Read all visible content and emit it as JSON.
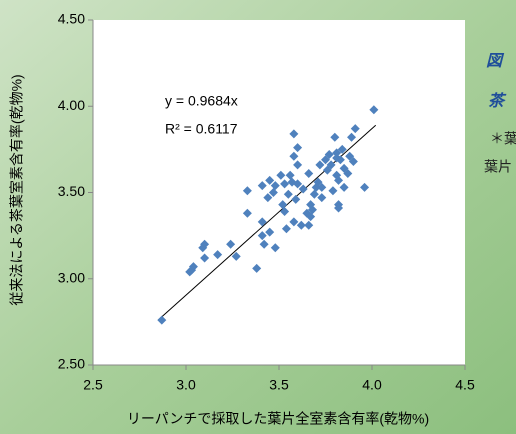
{
  "chart_data": {
    "type": "scatter",
    "x_label": "リーパンチで採取した葉片全室素含有率(乾物%)",
    "y_label": "従来法による茶葉室素含有率(乾物%)",
    "annotations": [
      "y = 0.9684x",
      "R² = 0.6117"
    ],
    "side_texts": [
      "図",
      "茶",
      "＊葉",
      "葉片"
    ],
    "color": "#4f81bd",
    "grid": false,
    "xlim": [
      2.5,
      4.5
    ],
    "ylim": [
      2.5,
      4.5
    ],
    "xticks": [
      2.5,
      {
        "value": 3,
        "label": "3.0"
      },
      3.5,
      {
        "value": 4,
        "label": "4.0"
      },
      4.5
    ],
    "yticks": [
      {
        "value": 2.5,
        "label": "2.50"
      },
      {
        "value": 3,
        "label": "3.00"
      },
      {
        "value": 3.5,
        "label": "3.50"
      },
      {
        "value": 4,
        "label": "4.00"
      },
      {
        "value": 4.5,
        "label": "4.50"
      }
    ],
    "trendline": {
      "x": [
        2.85,
        4.02
      ],
      "y": [
        2.76,
        3.89
      ]
    },
    "x": [
      2.87,
      3.02,
      3.04,
      3.03,
      3.1,
      3.1,
      3.09,
      3.17,
      3.24,
      3.27,
      3.33,
      3.33,
      3.38,
      3.41,
      3.41,
      3.42,
      3.41,
      3.44,
      3.45,
      3.45,
      3.47,
      3.48,
      3.48,
      3.52,
      3.51,
      3.53,
      3.53,
      3.54,
      3.55,
      3.56,
      3.57,
      3.58,
      3.58,
      3.58,
      3.59,
      3.6,
      3.6,
      3.6,
      3.62,
      3.63,
      3.65,
      3.66,
      3.67,
      3.68,
      3.69,
      3.7,
      3.67,
      3.71,
      3.72,
      3.73,
      3.73,
      3.75,
      3.76,
      3.77,
      3.78,
      3.79,
      3.81,
      3.81,
      3.8,
      3.81,
      3.82,
      3.82,
      3.82,
      3.83,
      3.84,
      3.85,
      3.85,
      3.87,
      3.88,
      3.89,
      3.9,
      3.91,
      3.96,
      4.01,
      3.66
    ],
    "values": [
      2.76,
      3.04,
      3.07,
      3.05,
      3.12,
      3.2,
      3.18,
      3.14,
      3.2,
      3.13,
      3.38,
      3.51,
      3.06,
      3.33,
      3.25,
      3.2,
      3.54,
      3.47,
      3.27,
      3.57,
      3.5,
      3.18,
      3.54,
      3.43,
      3.6,
      3.55,
      3.39,
      3.29,
      3.49,
      3.6,
      3.56,
      3.71,
      3.84,
      3.33,
      3.46,
      3.55,
      3.66,
      3.76,
      3.31,
      3.52,
      3.38,
      3.61,
      3.43,
      3.4,
      3.49,
      3.53,
      3.36,
      3.56,
      3.66,
      3.53,
      3.47,
      3.69,
      3.63,
      3.72,
      3.66,
      3.51,
      3.7,
      3.6,
      3.82,
      3.73,
      3.57,
      3.43,
      3.41,
      3.69,
      3.75,
      3.64,
      3.53,
      3.61,
      3.71,
      3.82,
      3.68,
      3.87,
      3.53,
      3.98,
      3.31
    ]
  }
}
